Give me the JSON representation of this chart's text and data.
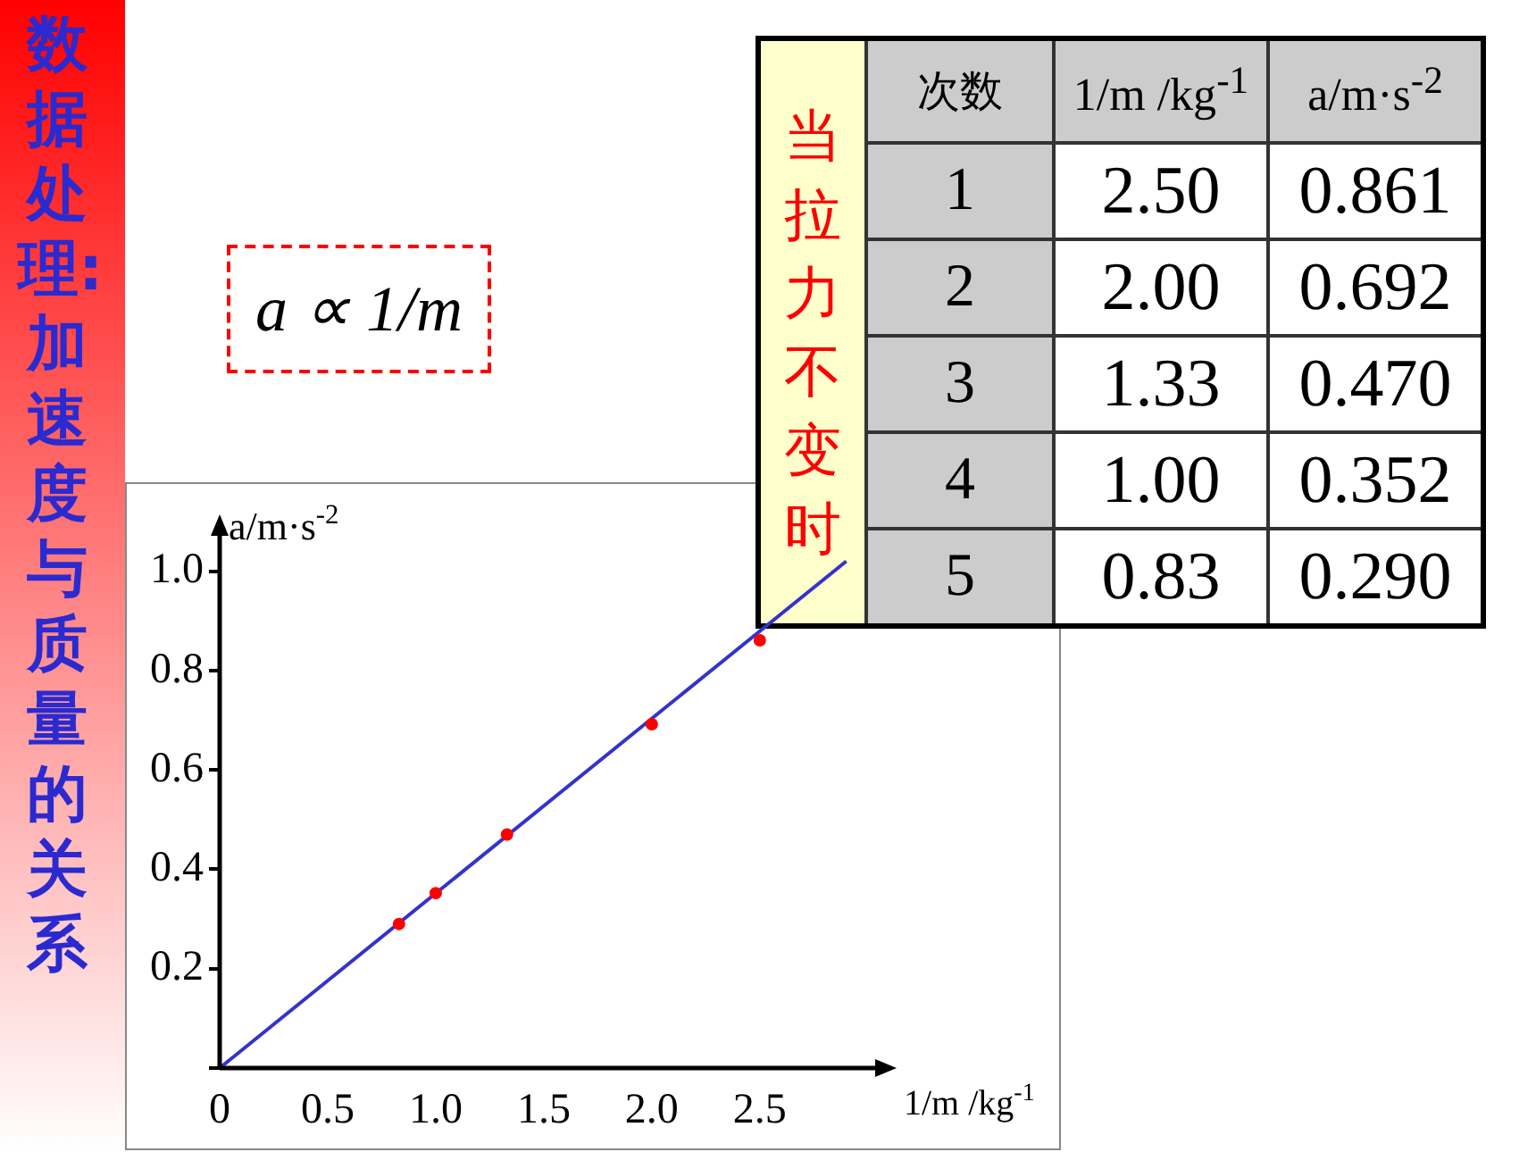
{
  "chart_data": {
    "type": "scatter",
    "title": "数据处理:加速度与质量的关系",
    "xlabel": "1/m /kg$^{-1}$",
    "ylabel": "a/m·s$^{-2}$",
    "annotations": [
      "a ∝ 1/m",
      "当拉力不变时",
      "次数",
      "1",
      "2",
      "3",
      "4",
      "5",
      "2.50",
      "2.00",
      "1.33",
      "1.00",
      "0.83",
      "0.861",
      "0.692",
      "0.470",
      "0.352",
      "0.290"
    ],
    "series": [
      {
        "color": "#ff0000",
        "marker": "circle",
        "x": [
          2.5,
          2.0,
          1.33,
          1.0,
          0.83
        ],
        "values": [
          0.861,
          0.692,
          0.47,
          0.352,
          0.29
        ]
      },
      {
        "type": "line",
        "color": "#3333cc",
        "marker": "none",
        "x": [
          0,
          2.9
        ],
        "values": [
          0,
          1.02
        ]
      }
    ],
    "grid": false,
    "legend": false,
    "xlim": [
      0,
      3.1
    ],
    "ylim": [
      0,
      1.1
    ],
    "xticks": [
      0,
      0.5,
      {
        "value": 1,
        "label": "1.0"
      },
      1.5,
      {
        "value": 2,
        "label": "2.0"
      },
      2.5
    ],
    "yticks": [
      {
        "value": 0,
        "label": null
      },
      0.2,
      0.4,
      0.6,
      0.8,
      {
        "value": 1,
        "label": "1.0"
      }
    ]
  }
}
